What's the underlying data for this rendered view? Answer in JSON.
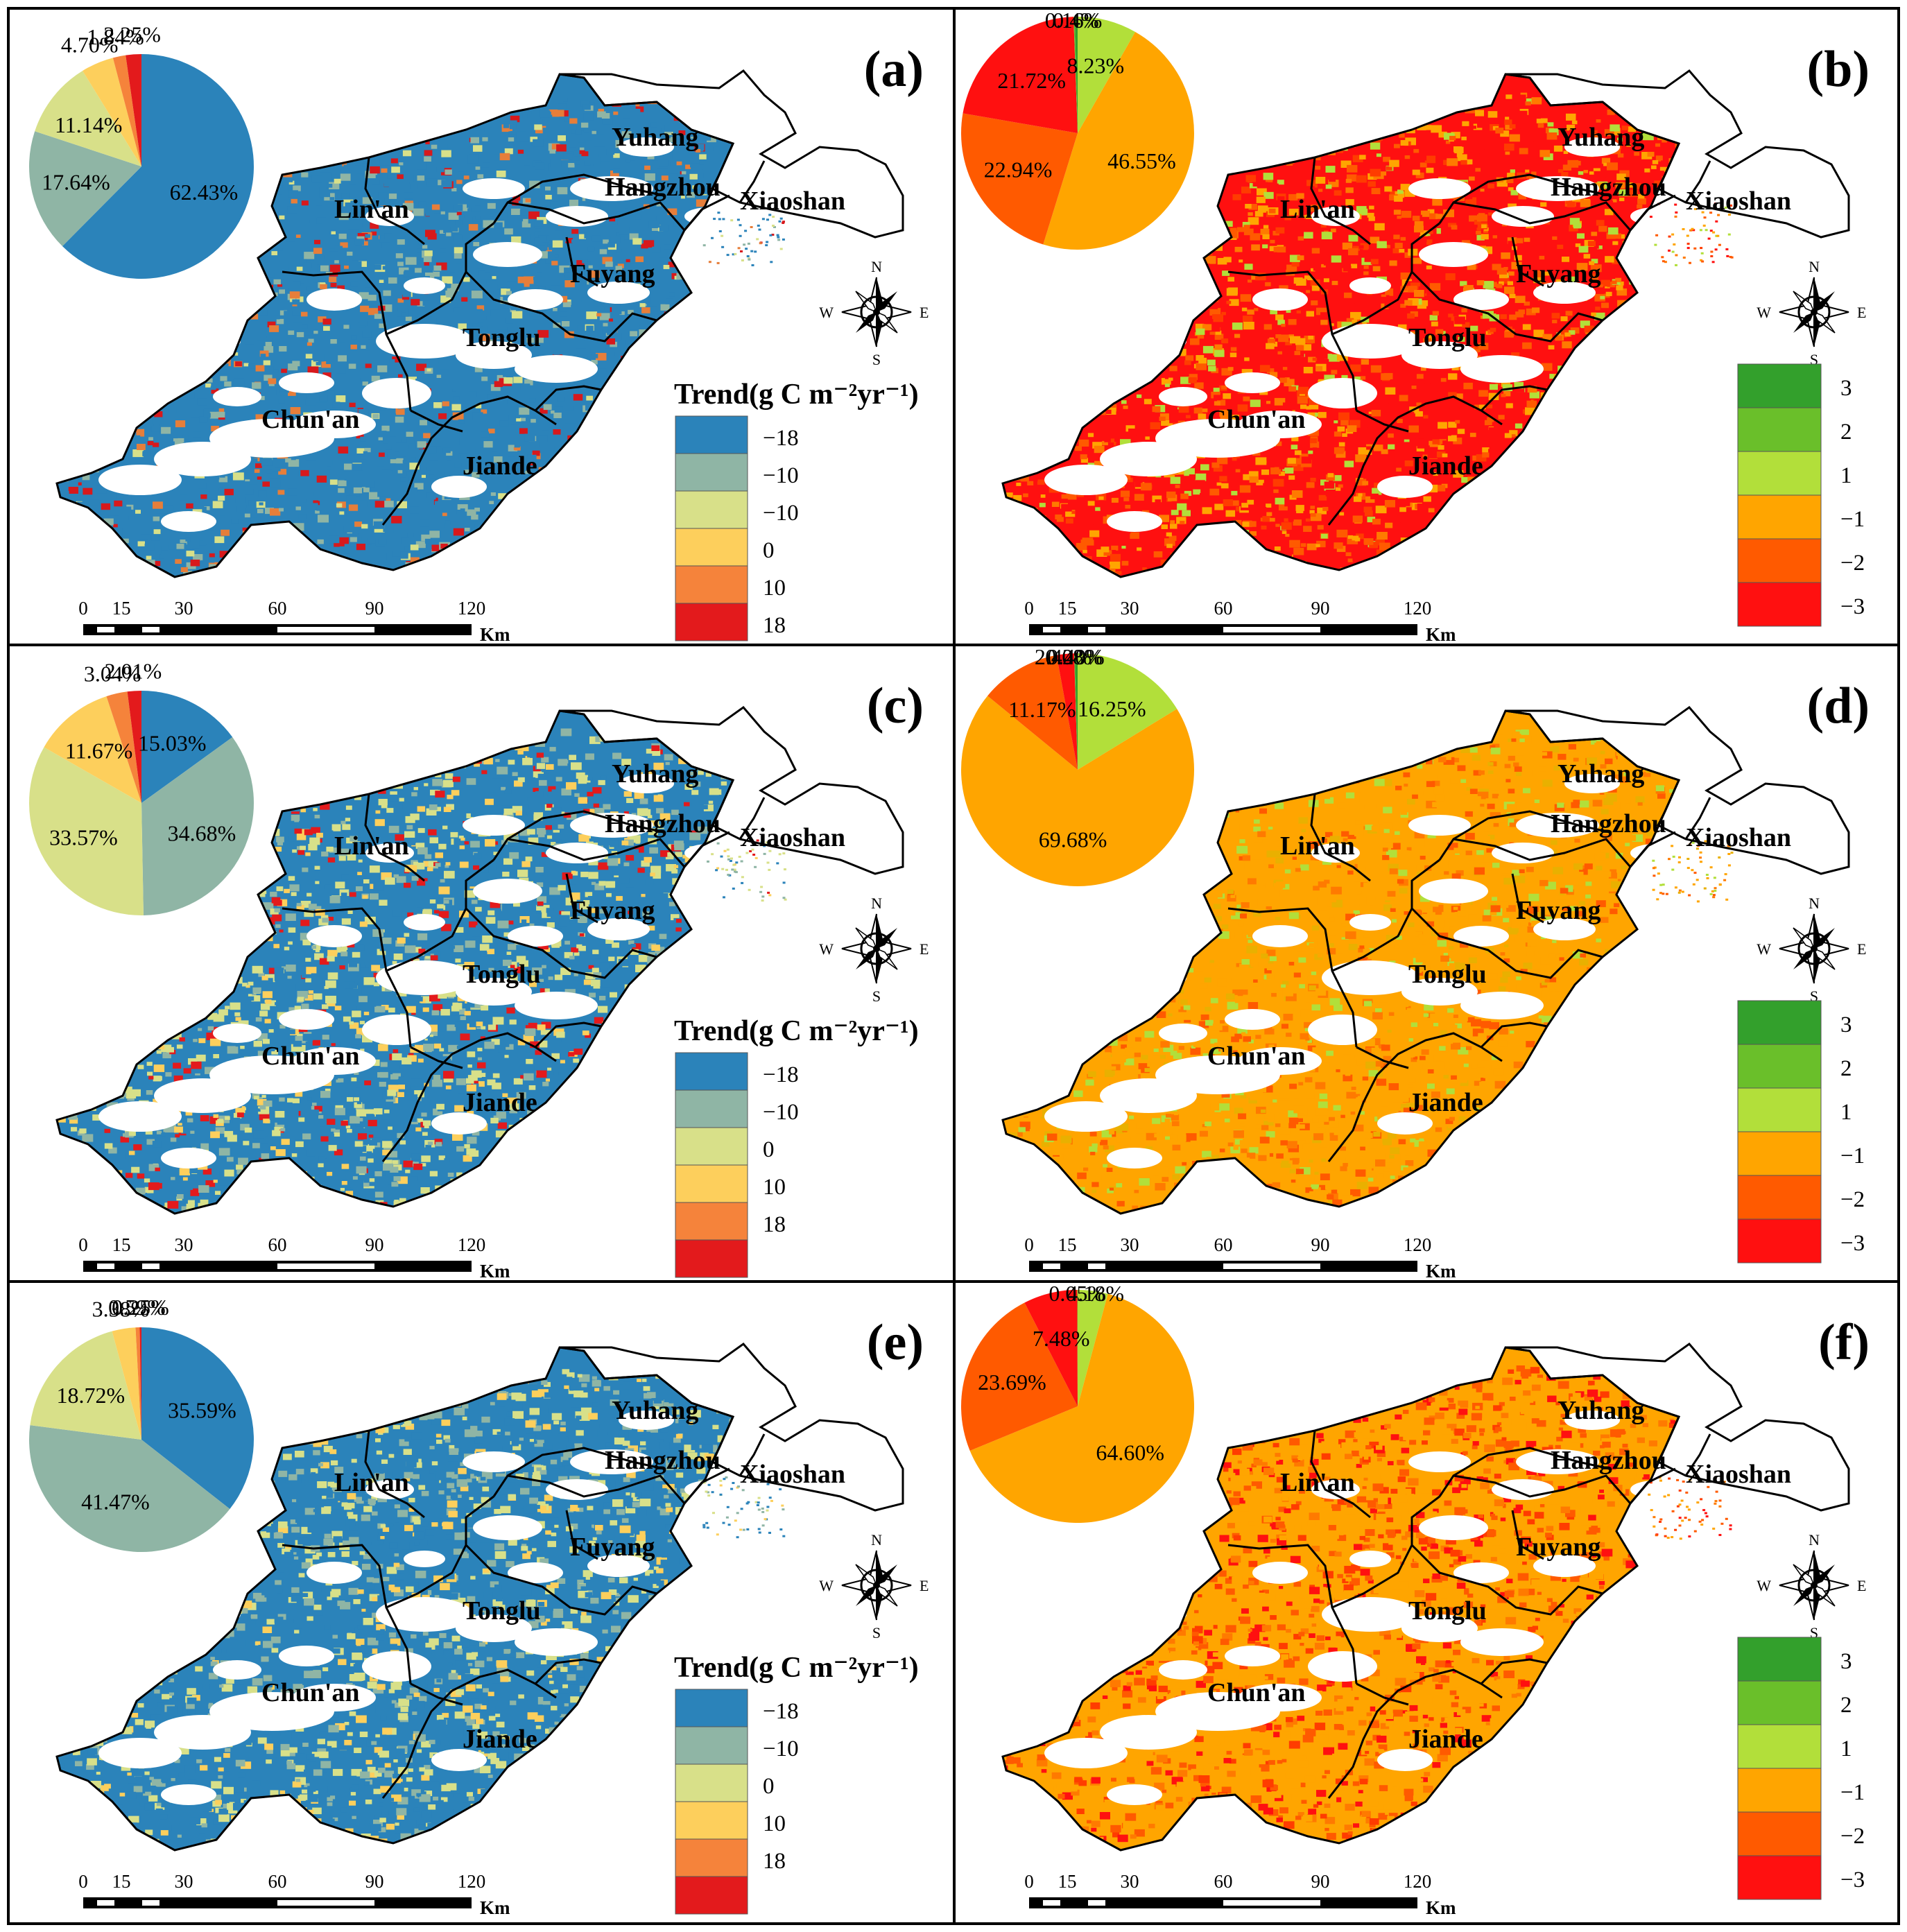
{
  "figure": {
    "panels": [
      {
        "id": "a",
        "label": "(a)",
        "kind": "trend",
        "legend_title": "Trend(g C m⁻²yr⁻¹)",
        "legend_labels": [
          "−18",
          "−10",
          "−10",
          "0",
          "10",
          "18"
        ],
        "legend_colors": [
          "#2b83ba",
          "#8fb5a5",
          "#d8e089",
          "#fdcf5c",
          "#f5833b",
          "#e31a1c"
        ],
        "map_palette": [
          "#2b83ba",
          "#2b83ba",
          "#2b83ba",
          "#2b83ba",
          "#2b83ba",
          "#2b83ba",
          "#8fb5a5",
          "#8fb5a5",
          "#d8e089",
          "#e67e3a",
          "#d7191c"
        ],
        "pie_values": [
          62.43,
          17.64,
          11.14,
          4.7,
          1.84,
          2.25
        ],
        "pie_labels": [
          "62.43%",
          "17.64%",
          "11.14%",
          "4.70%",
          "1.84%",
          "2.25%"
        ],
        "pie_colors": [
          "#2b83ba",
          "#8fb5a5",
          "#d8e089",
          "#fdcf5c",
          "#f5833b",
          "#e31a1c"
        ]
      },
      {
        "id": "b",
        "label": "(b)",
        "kind": "hurst",
        "legend_labels": [
          "3",
          "2",
          "1",
          "−1",
          "−2",
          "−3"
        ],
        "legend_colors": [
          "#33a02c",
          "#6abf2a",
          "#b2df3a",
          "#ffa500",
          "#ff5a00",
          "#ff1010"
        ],
        "map_palette": [
          "#ff1010",
          "#ff1010",
          "#ff3c00",
          "#ff5a00",
          "#ff5a00",
          "#ff7a00",
          "#ffa500",
          "#ffa500",
          "#b2df3a"
        ],
        "pie_values": [
          8.23,
          46.55,
          22.94,
          21.72,
          0.16,
          0.4
        ],
        "pie_labels": [
          "8.23%",
          "46.55%",
          "22.94%",
          "21.72%",
          "0.16%",
          "0.4%"
        ],
        "pie_colors": [
          "#b2df3a",
          "#ffa500",
          "#ff5a00",
          "#ff1010",
          "#6abf2a",
          "#33a02c"
        ]
      },
      {
        "id": "c",
        "label": "(c)",
        "kind": "trend",
        "legend_title": "Trend(g C m⁻²yr⁻¹)",
        "legend_labels": [
          "−18",
          "−10",
          "0",
          "10",
          "18"
        ],
        "legend_colors": [
          "#2b83ba",
          "#8fb5a5",
          "#d8e089",
          "#fdcf5c",
          "#f5833b",
          "#e31a1c"
        ],
        "map_palette": [
          "#2b83ba",
          "#2b83ba",
          "#8fb5a5",
          "#8fb5a5",
          "#d8e089",
          "#d8e089",
          "#d8e089",
          "#fdcf5c",
          "#e31a1c"
        ],
        "pie_values": [
          15.03,
          34.68,
          33.57,
          11.67,
          3.04,
          2.01
        ],
        "pie_labels": [
          "15.03%",
          "34.68%",
          "33.57%",
          "11.67%",
          "3.04%",
          "2.01%"
        ],
        "pie_colors": [
          "#2b83ba",
          "#8fb5a5",
          "#d8e089",
          "#fdcf5c",
          "#f5833b",
          "#e31a1c"
        ]
      },
      {
        "id": "d",
        "label": "(d)",
        "kind": "hurst",
        "legend_labels": [
          "3",
          "2",
          "1",
          "−1",
          "−2",
          "−3"
        ],
        "legend_colors": [
          "#33a02c",
          "#6abf2a",
          "#b2df3a",
          "#ffa500",
          "#ff5a00",
          "#ff1010"
        ],
        "map_palette": [
          "#ffa500",
          "#ffa500",
          "#ffa500",
          "#ffa500",
          "#e9b000",
          "#ff7a00",
          "#ff5a00",
          "#b2df3a"
        ],
        "pie_values": [
          16.25,
          69.68,
          11.17,
          2.42,
          0.08,
          0.4
        ],
        "pie_labels": [
          "16.25%",
          "69.68%",
          "11.17%",
          "2.42%",
          "0.08%",
          "0.40%"
        ],
        "pie_colors": [
          "#b2df3a",
          "#ffa500",
          "#ff5a00",
          "#ff1010",
          "#6abf2a",
          "#33a02c"
        ]
      },
      {
        "id": "e",
        "label": "(e)",
        "kind": "trend",
        "legend_title": "Trend(g C m⁻²yr⁻¹)",
        "legend_labels": [
          "−18",
          "−10",
          "0",
          "10",
          "18"
        ],
        "legend_colors": [
          "#2b83ba",
          "#8fb5a5",
          "#d8e089",
          "#fdcf5c",
          "#f5833b",
          "#e31a1c"
        ],
        "map_palette": [
          "#2b83ba",
          "#2b83ba",
          "#2b83ba",
          "#8fb5a5",
          "#8fb5a5",
          "#d8e089",
          "#d8e089",
          "#fdcf5c"
        ],
        "pie_values": [
          35.59,
          41.47,
          18.72,
          3.38,
          0.59,
          0.25
        ],
        "pie_labels": [
          "35.59%",
          "41.47%",
          "18.72%",
          "3.38%",
          "0.59%",
          "0.25%"
        ],
        "pie_colors": [
          "#2b83ba",
          "#8fb5a5",
          "#d8e089",
          "#fdcf5c",
          "#f5833b",
          "#e31a1c"
        ]
      },
      {
        "id": "f",
        "label": "(f)",
        "kind": "hurst",
        "legend_labels": [
          "3",
          "2",
          "1",
          "−1",
          "−2",
          "−3"
        ],
        "legend_colors": [
          "#33a02c",
          "#6abf2a",
          "#b2df3a",
          "#ffa500",
          "#ff5a00",
          "#ff1010"
        ],
        "map_palette": [
          "#ffa500",
          "#ffa500",
          "#ff7a00",
          "#ff5a00",
          "#ff5a00",
          "#ff3c00",
          "#ff1010",
          "#ffa500"
        ],
        "pie_values": [
          4.18,
          64.6,
          23.69,
          7.48,
          0.05
        ],
        "pie_labels": [
          "4.18%",
          "64.60%",
          "23.69%",
          "7.48%",
          "0.05%"
        ],
        "pie_colors": [
          "#b2df3a",
          "#ffa500",
          "#ff5a00",
          "#ff1010",
          "#6abf2a"
        ]
      }
    ],
    "districts": [
      "Yuhang",
      "Hangzhou",
      "Xiaoshan",
      "Lin'an",
      "Fuyang",
      "Tonglu",
      "Chun'an",
      "Jiande"
    ],
    "scale_ticks": [
      "0",
      "15",
      "30",
      "60",
      "90",
      "120"
    ],
    "scale_unit": "Km",
    "compass": [
      "N",
      "E",
      "S",
      "W"
    ]
  }
}
